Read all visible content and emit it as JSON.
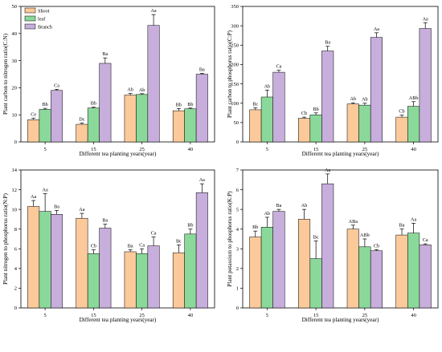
{
  "colors": {
    "shoot": "#FBC99A",
    "leaf": "#8BD99A",
    "branch": "#C7AEDC"
  },
  "chart_data": [
    {
      "type": "bar",
      "title": "",
      "xlabel": "Different tea planting years(year)",
      "ylabel": "Plant carbon to nitrogen ratio(C:N)",
      "categories": [
        "5",
        "15",
        "25",
        "40"
      ],
      "ylim": [
        0,
        50
      ],
      "yticks": [
        0,
        10,
        20,
        30,
        40,
        50
      ],
      "legend": {
        "position": "top-left",
        "entries": [
          "Shoot",
          "leaf",
          "Branch"
        ]
      },
      "series": [
        {
          "name": "Shoot",
          "values": [
            8.2,
            6.5,
            17.3,
            11.5
          ],
          "errors": [
            0.6,
            0.5,
            0.6,
            0.8
          ],
          "labels": [
            "Ce",
            "Dc",
            "Ab",
            "Bb"
          ]
        },
        {
          "name": "leaf",
          "values": [
            12.0,
            12.5,
            17.5,
            12.2
          ],
          "errors": [
            0.4,
            0.3,
            0.3,
            0.3
          ],
          "labels": [
            "Bb",
            "Bb",
            "Ab",
            "Bb"
          ]
        },
        {
          "name": "Branch",
          "values": [
            19.0,
            29.0,
            43.0,
            25.0
          ],
          "errors": [
            0.4,
            2.0,
            4.0,
            0.3
          ],
          "labels": [
            "Ca",
            "Ba",
            "Aa",
            "Ba"
          ]
        }
      ]
    },
    {
      "type": "bar",
      "title": "",
      "xlabel": "Different tea planting years(year)",
      "ylabel": "Plant carbon to phosphorus ratio(C:P)",
      "categories": [
        "5",
        "15",
        "25",
        "40"
      ],
      "ylim": [
        0,
        350
      ],
      "yticks": [
        0,
        50,
        100,
        150,
        200,
        250,
        300,
        350
      ],
      "series": [
        {
          "name": "Shoot",
          "values": [
            83,
            61,
            98,
            64
          ],
          "errors": [
            5,
            3,
            3,
            5
          ],
          "labels": [
            "Bc",
            "Cb",
            "Ab",
            "Cb"
          ]
        },
        {
          "name": "leaf",
          "values": [
            116,
            70,
            95,
            92
          ],
          "errors": [
            18,
            5,
            5,
            12
          ],
          "labels": [
            "Ab",
            "Bb",
            "Ab",
            "ABb"
          ]
        },
        {
          "name": "Branch",
          "values": [
            180,
            235,
            270,
            293
          ],
          "errors": [
            5,
            12,
            12,
            15
          ],
          "labels": [
            "Ca",
            "Ba",
            "Aa",
            "Aa"
          ]
        }
      ]
    },
    {
      "type": "bar",
      "title": "",
      "xlabel": "Different tea planting years(year)",
      "ylabel": "Plant nitrogen to phosphorus ratio(N:P)",
      "categories": [
        "5",
        "15",
        "25",
        "40"
      ],
      "ylim": [
        0,
        14
      ],
      "yticks": [
        0,
        2,
        4,
        6,
        8,
        10,
        12,
        14
      ],
      "series": [
        {
          "name": "Shoot",
          "values": [
            10.3,
            9.1,
            5.7,
            5.6
          ],
          "errors": [
            0.6,
            0.5,
            0.2,
            0.8
          ],
          "labels": [
            "Aa",
            "Aa",
            "Ba",
            "Bc"
          ]
        },
        {
          "name": "leaf",
          "values": [
            9.8,
            5.5,
            5.5,
            7.5
          ],
          "errors": [
            1.8,
            0.4,
            0.5,
            0.5
          ],
          "labels": [
            "Aa",
            "Cb",
            "Ca",
            "Bb"
          ]
        },
        {
          "name": "Branch",
          "values": [
            9.5,
            8.1,
            6.3,
            11.7
          ],
          "errors": [
            0.4,
            0.4,
            0.9,
            0.9
          ],
          "labels": [
            "Ba",
            "Ba",
            "Ca",
            "Aa"
          ]
        }
      ]
    },
    {
      "type": "bar",
      "title": "",
      "xlabel": "Different tea planting years(year)",
      "ylabel": "Plant potassium to phosphorus ratio(K:P)",
      "categories": [
        "5",
        "15",
        "25",
        "40"
      ],
      "ylim": [
        0,
        7
      ],
      "yticks": [
        0,
        1,
        2,
        3,
        4,
        5,
        6,
        7
      ],
      "series": [
        {
          "name": "Shoot",
          "values": [
            3.6,
            4.5,
            4.0,
            3.7
          ],
          "errors": [
            0.3,
            0.5,
            0.2,
            0.3
          ],
          "labels": [
            "Bb",
            "Ab",
            "ABa",
            "Ba"
          ]
        },
        {
          "name": "leaf",
          "values": [
            4.1,
            2.5,
            3.1,
            3.8
          ],
          "errors": [
            0.5,
            0.9,
            0.4,
            0.5
          ],
          "labels": [
            "Ab",
            "Bc",
            "ABb",
            "Aa"
          ]
        },
        {
          "name": "Branch",
          "values": [
            4.9,
            6.3,
            2.9,
            3.2
          ],
          "errors": [
            0.1,
            0.5,
            0.05,
            0.05
          ],
          "labels": [
            "Ba",
            "Aa",
            "Cb",
            "Ca"
          ]
        }
      ]
    }
  ]
}
